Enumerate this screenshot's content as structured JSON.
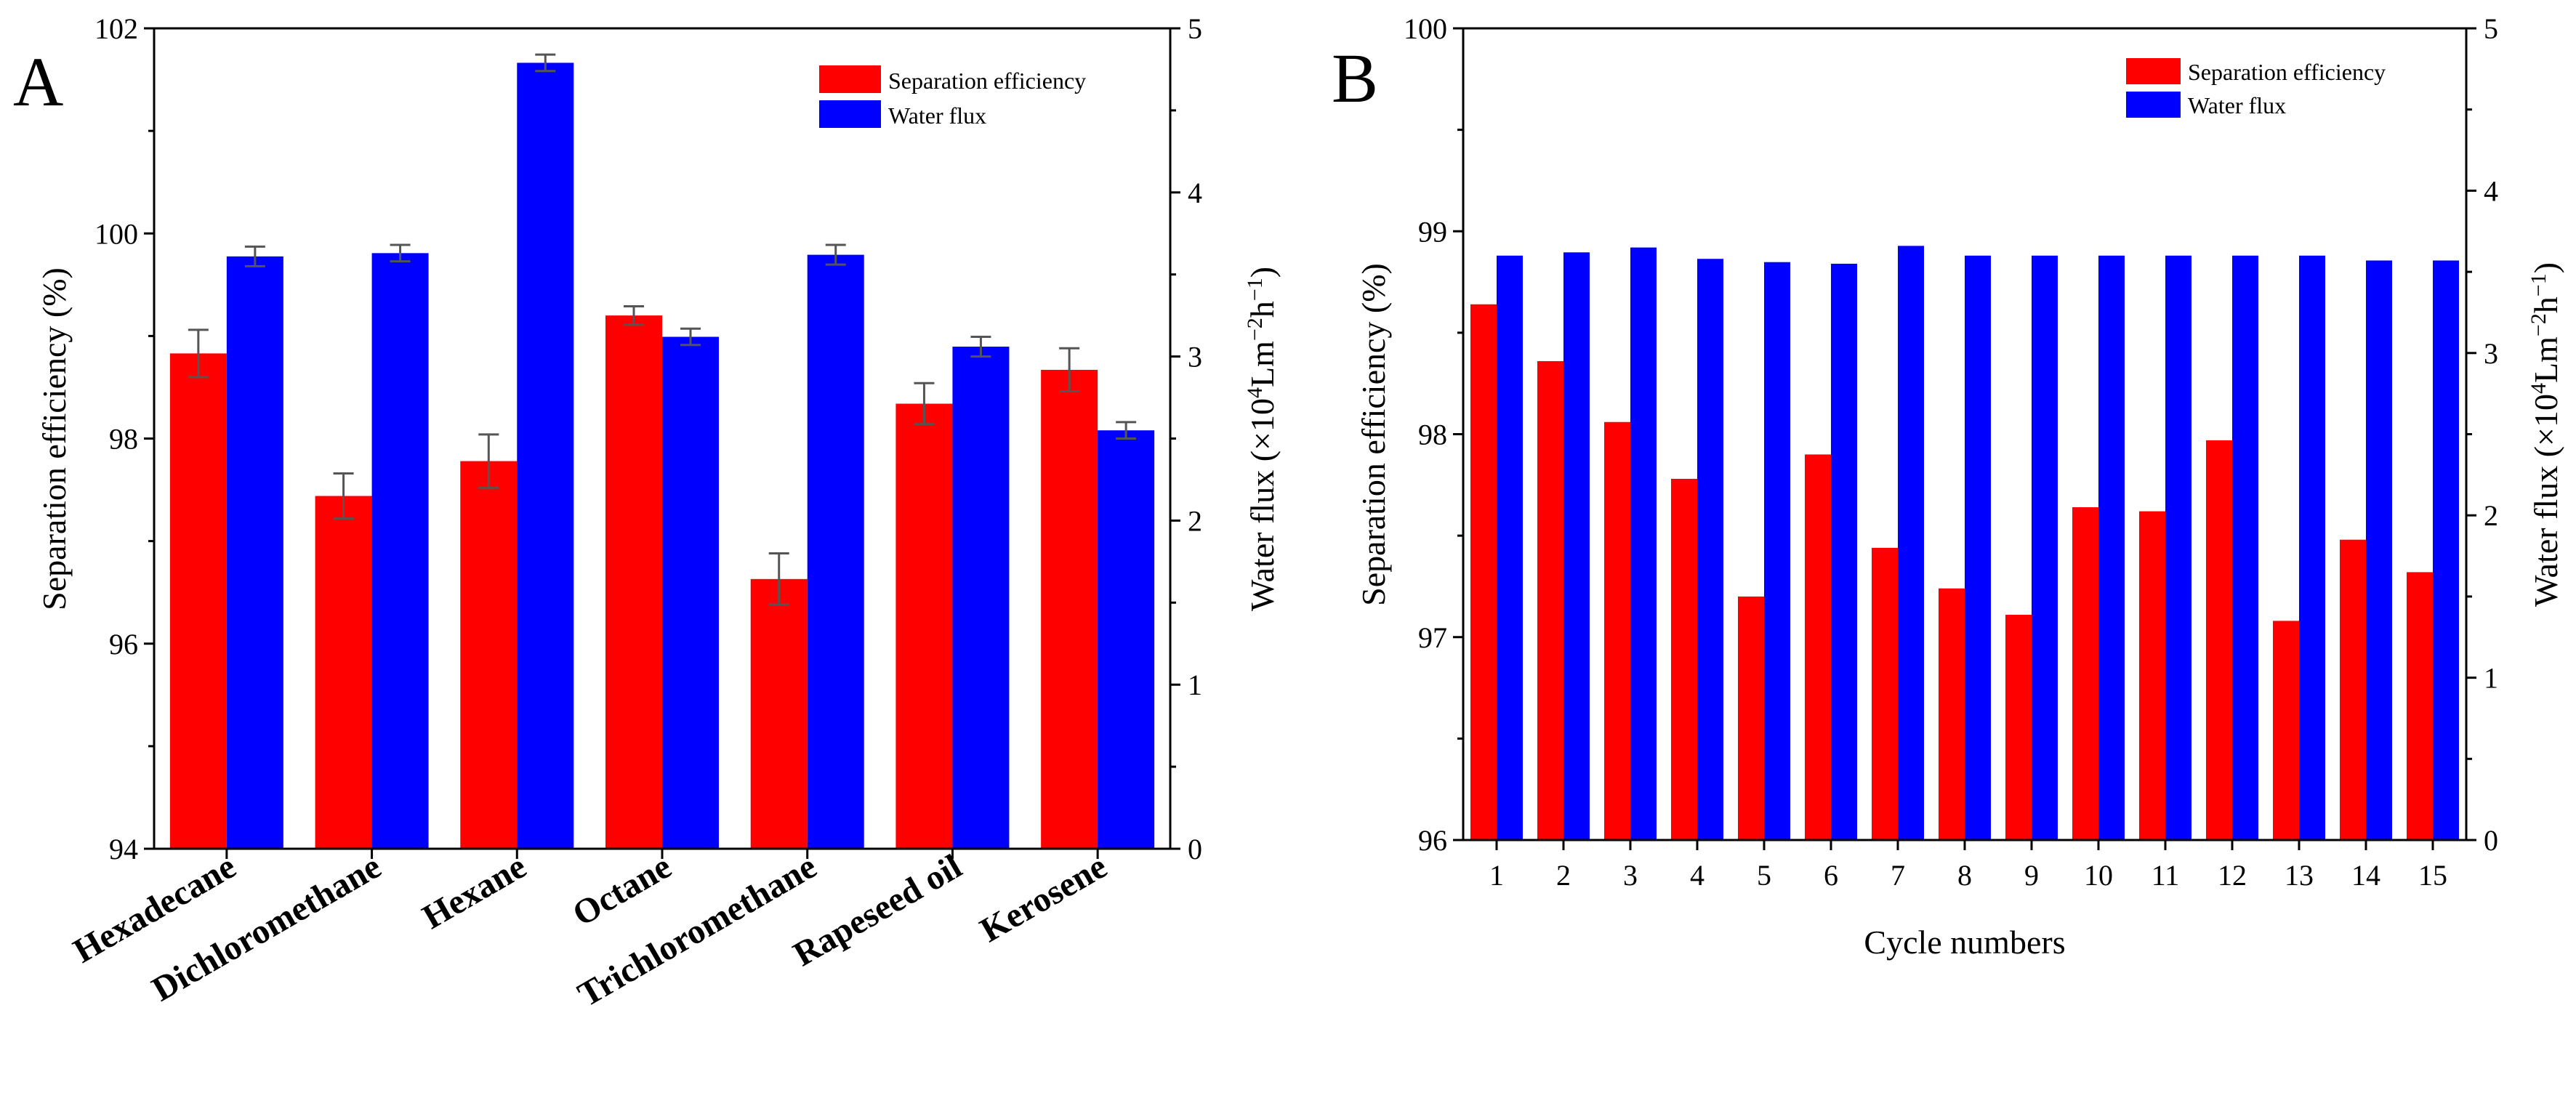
{
  "colors": {
    "separation": "#ff0000",
    "flux": "#0000ff",
    "errorbar": "#555555",
    "axis": "#000000"
  },
  "chart_data": [
    {
      "type": "bar",
      "panel": "A",
      "categories": [
        "Hexadecane",
        "Dichloromethane",
        "Hexane",
        "Octane",
        "Trichloromethane",
        "Rapeseed oil",
        "Kerosene"
      ],
      "xlabel": "",
      "ylabel": "Separation efficiency (%)",
      "ylim": [
        94,
        102
      ],
      "yticks": [
        "94",
        "96",
        "98",
        "100",
        "102"
      ],
      "y2label": {
        "main": "Water flux (×10",
        "sup1": "4",
        "mid": "Lm",
        "sup2": "−2",
        "mid2": "h",
        "sup3": "−1",
        "end": ")"
      },
      "y2lim": [
        0,
        5
      ],
      "y2ticks": [
        "0",
        "1",
        "2",
        "3",
        "4",
        "5"
      ],
      "legend_position": "top-right",
      "series": [
        {
          "name": "Separation efficiency",
          "axis": "left",
          "values": [
            98.83,
            97.44,
            97.78,
            99.2,
            96.63,
            98.34,
            98.67
          ],
          "errors": [
            0.23,
            0.22,
            0.26,
            0.09,
            0.25,
            0.2,
            0.21
          ]
        },
        {
          "name": "Water flux",
          "axis": "right",
          "values": [
            3.61,
            3.63,
            4.79,
            3.12,
            3.62,
            3.06,
            2.55
          ],
          "errors": [
            0.06,
            0.05,
            0.05,
            0.05,
            0.06,
            0.06,
            0.05
          ]
        }
      ]
    },
    {
      "type": "bar",
      "panel": "B",
      "categories": [
        "1",
        "2",
        "3",
        "4",
        "5",
        "6",
        "7",
        "8",
        "9",
        "10",
        "11",
        "12",
        "13",
        "14",
        "15"
      ],
      "xlabel": "Cycle numbers",
      "ylabel": "Separation efficiency (%)",
      "ylim": [
        96,
        100
      ],
      "yticks": [
        "96",
        "97",
        "98",
        "99",
        "100"
      ],
      "y2label": {
        "main": "Water flux (×10",
        "sup1": "4",
        "mid": "Lm",
        "sup2": "−2",
        "mid2": "h",
        "sup3": "−1",
        "end": ")"
      },
      "y2lim": [
        0,
        5
      ],
      "y2ticks": [
        "0",
        "1",
        "2",
        "3",
        "4",
        "5"
      ],
      "legend_position": "top-right",
      "series": [
        {
          "name": "Separation efficiency",
          "axis": "left",
          "values": [
            98.64,
            98.36,
            98.06,
            97.78,
            97.2,
            97.9,
            97.44,
            97.24,
            97.11,
            97.64,
            97.62,
            97.97,
            97.08,
            97.48,
            97.32
          ]
        },
        {
          "name": "Water flux",
          "axis": "right",
          "values": [
            3.6,
            3.62,
            3.65,
            3.58,
            3.56,
            3.55,
            3.66,
            3.6,
            3.6,
            3.6,
            3.6,
            3.6,
            3.6,
            3.57,
            3.57
          ]
        }
      ]
    }
  ]
}
